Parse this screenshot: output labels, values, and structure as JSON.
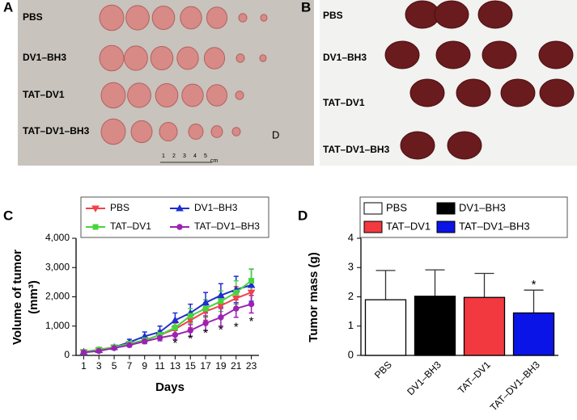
{
  "panels": {
    "A": {
      "label": "A",
      "rows": [
        "PBS",
        "DV1–BH3",
        "TAT–DV1",
        "TAT–DV1–BH3"
      ],
      "note": "D",
      "scale": [
        "1",
        "2",
        "3",
        "4",
        "5",
        "cm"
      ]
    },
    "B": {
      "label": "B",
      "rows": [
        "PBS",
        "DV1–BH3",
        "TAT–DV1",
        "TAT–DV1–BH3"
      ]
    }
  },
  "chart_data": [
    {
      "type": "line",
      "panel_label": "C",
      "xlabel": "Days",
      "ylabel": [
        "Volume of tumor",
        "(mm³)"
      ],
      "x": [
        1,
        3,
        5,
        7,
        9,
        11,
        13,
        15,
        17,
        19,
        21,
        23
      ],
      "xlim": [
        0,
        24
      ],
      "xticks": [
        1,
        3,
        5,
        7,
        9,
        11,
        13,
        15,
        17,
        19,
        21,
        23
      ],
      "ylim": [
        0,
        4000
      ],
      "yticks": [
        0,
        {
          "value": 1000,
          "label": "1,000"
        },
        {
          "value": 2000,
          "label": "2,000"
        },
        {
          "value": 3000,
          "label": "3,000"
        },
        {
          "value": 4000,
          "label": "4,000"
        }
      ],
      "series": [
        {
          "name": "PBS",
          "color": "#f0434a",
          "marker": "triangle-down",
          "values": [
            110,
            170,
            270,
            380,
            520,
            700,
            900,
            1200,
            1500,
            1700,
            1950,
            2150
          ],
          "errors": [
            30,
            50,
            60,
            80,
            100,
            150,
            200,
            250,
            300,
            350,
            400,
            450
          ]
        },
        {
          "name": "DV1–BH3",
          "color": "#1f2fd0",
          "marker": "triangle-up",
          "values": [
            120,
            180,
            280,
            450,
            650,
            800,
            1200,
            1450,
            1800,
            2050,
            2250,
            2400
          ],
          "errors": [
            40,
            60,
            70,
            100,
            150,
            200,
            250,
            300,
            350,
            400,
            450,
            550
          ]
        },
        {
          "name": "TAT–DV1",
          "color": "#48d43c",
          "marker": "square",
          "values": [
            120,
            200,
            280,
            400,
            520,
            700,
            950,
            1350,
            1600,
            1850,
            2150,
            2550
          ],
          "errors": [
            30,
            50,
            60,
            80,
            100,
            150,
            200,
            250,
            300,
            350,
            400,
            400
          ]
        },
        {
          "name": "TAT–DV1–BH3",
          "color": "#9b22b4",
          "marker": "circle",
          "values": [
            100,
            150,
            250,
            350,
            480,
            600,
            700,
            850,
            1100,
            1300,
            1600,
            1750
          ],
          "errors": [
            30,
            40,
            50,
            60,
            80,
            100,
            150,
            200,
            250,
            300,
            300,
            300
          ]
        }
      ],
      "annotations": [
        {
          "text": "*",
          "x": 13,
          "y": 400
        },
        {
          "text": "*",
          "x": 15,
          "y": 550
        },
        {
          "text": "*",
          "x": 17,
          "y": 750
        },
        {
          "text": "*",
          "x": 19,
          "y": 850
        },
        {
          "text": "*",
          "x": 21,
          "y": 950
        },
        {
          "text": "*",
          "x": 23,
          "y": 1150
        }
      ]
    },
    {
      "type": "bar",
      "panel_label": "D",
      "ylabel": "Tumor mass (g)",
      "categories": [
        "PBS",
        "DV1–BH3",
        "TAT–DV1",
        "TAT–DV1–BH3"
      ],
      "colors": [
        "#ffffff",
        "#000000",
        "#f2393f",
        "#0a14e6"
      ],
      "values": [
        1.9,
        2.02,
        1.98,
        1.45
      ],
      "errors": [
        1.0,
        0.9,
        0.82,
        0.78
      ],
      "ylim": [
        0,
        4
      ],
      "yticks": [
        0,
        1,
        2,
        3,
        4
      ],
      "annotations": [
        {
          "text": "*",
          "category": 3,
          "y": 2.4
        }
      ]
    }
  ]
}
